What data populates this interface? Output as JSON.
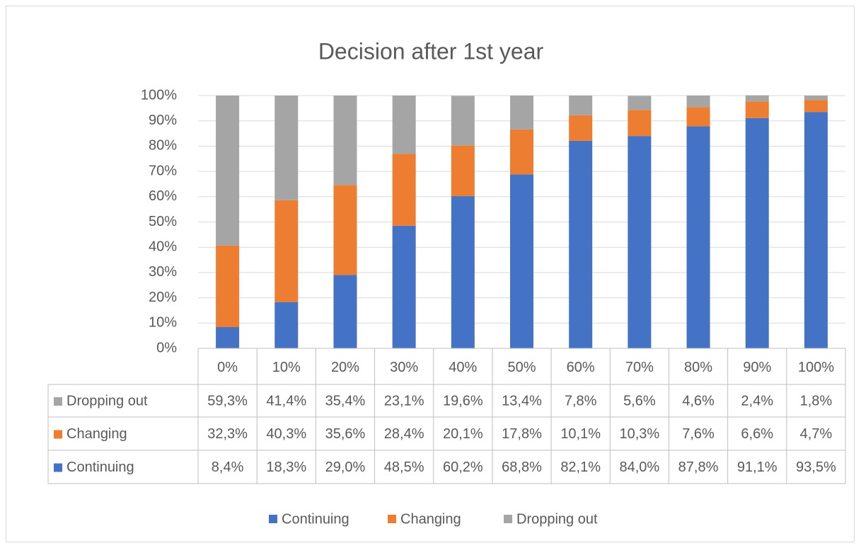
{
  "chart_data": {
    "type": "stacked_bar",
    "title": "Decision after 1st year",
    "categories": [
      "0%",
      "10%",
      "20%",
      "30%",
      "40%",
      "50%",
      "60%",
      "70%",
      "80%",
      "90%",
      "100%"
    ],
    "series": [
      {
        "name": "Continuing",
        "color": "#4472c4",
        "values": [
          8.4,
          18.3,
          29.0,
          48.5,
          60.2,
          68.8,
          82.1,
          84.0,
          87.8,
          91.1,
          93.5
        ],
        "value_labels": [
          "8,4%",
          "18,3%",
          "29,0%",
          "48,5%",
          "60,2%",
          "68,8%",
          "82,1%",
          "84,0%",
          "87,8%",
          "91,1%",
          "93,5%"
        ]
      },
      {
        "name": "Changing",
        "color": "#ed7d31",
        "values": [
          32.3,
          40.3,
          35.6,
          28.4,
          20.1,
          17.8,
          10.1,
          10.3,
          7.6,
          6.6,
          4.7
        ],
        "value_labels": [
          "32,3%",
          "40,3%",
          "35,6%",
          "28,4%",
          "20,1%",
          "17,8%",
          "10,1%",
          "10,3%",
          "7,6%",
          "6,6%",
          "4,7%"
        ]
      },
      {
        "name": "Dropping out",
        "color": "#a5a5a5",
        "values": [
          59.3,
          41.4,
          35.4,
          23.1,
          19.6,
          13.4,
          7.8,
          5.6,
          4.6,
          2.4,
          1.8
        ],
        "value_labels": [
          "59,3%",
          "41,4%",
          "35,4%",
          "23,1%",
          "19,6%",
          "13,4%",
          "7,8%",
          "5,6%",
          "4,6%",
          "2,4%",
          "1,8%"
        ]
      }
    ],
    "ylim": [
      0,
      100
    ],
    "yticks": [
      {
        "value": 0,
        "label": "0%"
      },
      {
        "value": 10,
        "label": "10%"
      },
      {
        "value": 20,
        "label": "20%"
      },
      {
        "value": 30,
        "label": "30%"
      },
      {
        "value": 40,
        "label": "40%"
      },
      {
        "value": 50,
        "label": "50%"
      },
      {
        "value": 60,
        "label": "60%"
      },
      {
        "value": 70,
        "label": "70%"
      },
      {
        "value": 80,
        "label": "80%"
      },
      {
        "value": 90,
        "label": "90%"
      },
      {
        "value": 100,
        "label": "100%"
      }
    ],
    "grid": true,
    "legend": "bottom"
  }
}
